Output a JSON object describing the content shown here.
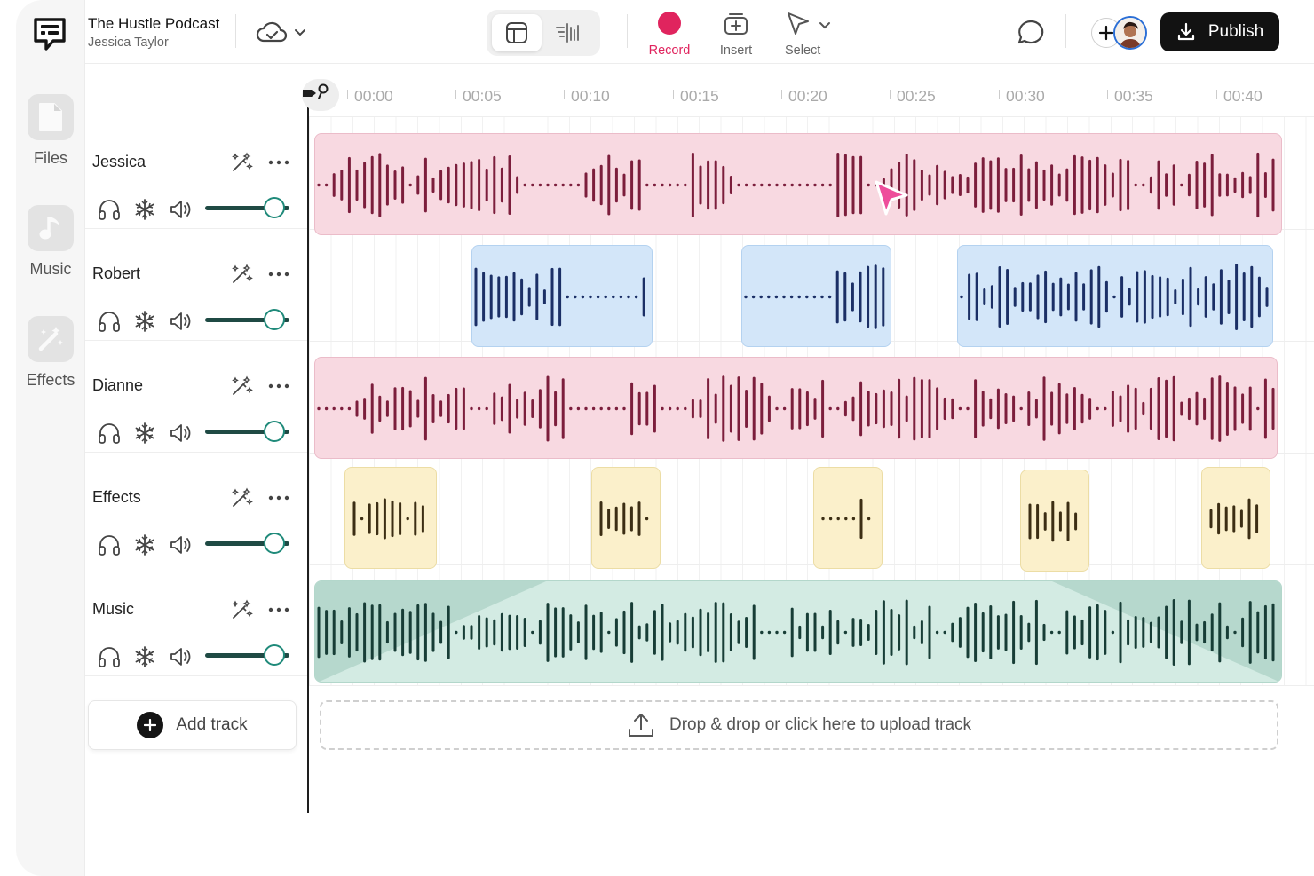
{
  "project": {
    "title": "The Hustle Podcast",
    "user": "Jessica Taylor"
  },
  "sidebar": {
    "items": [
      {
        "label": "Files",
        "icon": "file-icon"
      },
      {
        "label": "Music",
        "icon": "music-note-icon"
      },
      {
        "label": "Effects",
        "icon": "magic-wand-icon"
      }
    ]
  },
  "toolbar": {
    "record_label": "Record",
    "insert_label": "Insert",
    "select_label": "Select",
    "publish_label": "Publish"
  },
  "ruler": {
    "ticks": [
      "00:00",
      "00:05",
      "00:10",
      "00:15",
      "00:20",
      "00:25",
      "00:30",
      "00:35",
      "00:40"
    ]
  },
  "tracks": [
    {
      "name": "Jessica",
      "color": "#7c1e3c",
      "volume": 0.95
    },
    {
      "name": "Robert",
      "color": "#1b2f66",
      "volume": 0.95
    },
    {
      "name": "Dianne",
      "color": "#7c1e3c",
      "volume": 0.95
    },
    {
      "name": "Effects",
      "color": "#3c2e14",
      "volume": 0.95
    },
    {
      "name": "Music",
      "color": "#173d36",
      "volume": 0.95
    }
  ],
  "add_track_label": "Add track",
  "upload_label": "Drop & drop or click here to upload track",
  "colors": {
    "record": "#e0245e",
    "publish_bg": "#121212",
    "clip_pink": "#f8d9e1",
    "clip_blue": "#d3e6f9",
    "clip_yellow": "#fbf0cb",
    "clip_green": "#d3ebe3",
    "cursor": "#ee4d9b"
  }
}
